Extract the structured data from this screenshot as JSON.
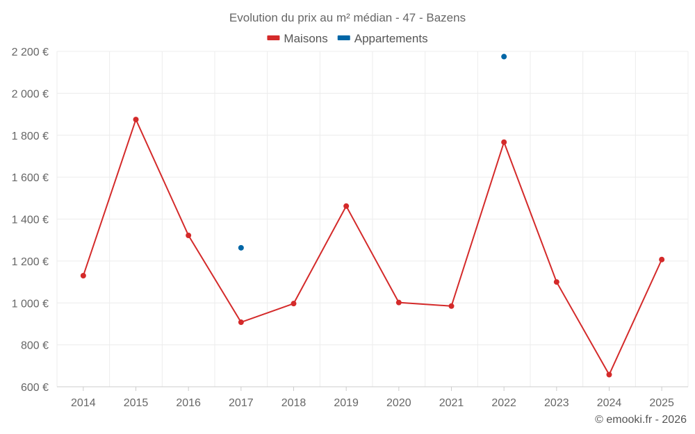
{
  "chart_data": {
    "type": "line",
    "title": "Evolution du prix au m² médian - 47 - Bazens",
    "categories": [
      "2014",
      "2015",
      "2016",
      "2017",
      "2018",
      "2019",
      "2020",
      "2021",
      "2022",
      "2023",
      "2024",
      "2025"
    ],
    "series": [
      {
        "name": "Maisons",
        "color": "#d42a2a",
        "values": [
          1130,
          1875,
          1322,
          908,
          997,
          1462,
          1002,
          985,
          1767,
          1100,
          658,
          1207
        ]
      },
      {
        "name": "Appartements",
        "color": "#0066a6",
        "values": [
          null,
          null,
          null,
          1263,
          null,
          null,
          null,
          null,
          2175,
          null,
          null,
          null
        ]
      }
    ],
    "ylim": [
      600,
      2200
    ],
    "yticks": [
      600,
      800,
      1000,
      1200,
      1400,
      1600,
      1800,
      2000,
      2200
    ],
    "ytick_labels": [
      "600 €",
      "800 €",
      "1 000 €",
      "1 200 €",
      "1 400 €",
      "1 600 €",
      "1 800 €",
      "2 000 €",
      "2 200 €"
    ],
    "xlabel": "",
    "ylabel": "",
    "grid": true,
    "legend": "top-center"
  },
  "credit": "© emooki.fr - 2026"
}
